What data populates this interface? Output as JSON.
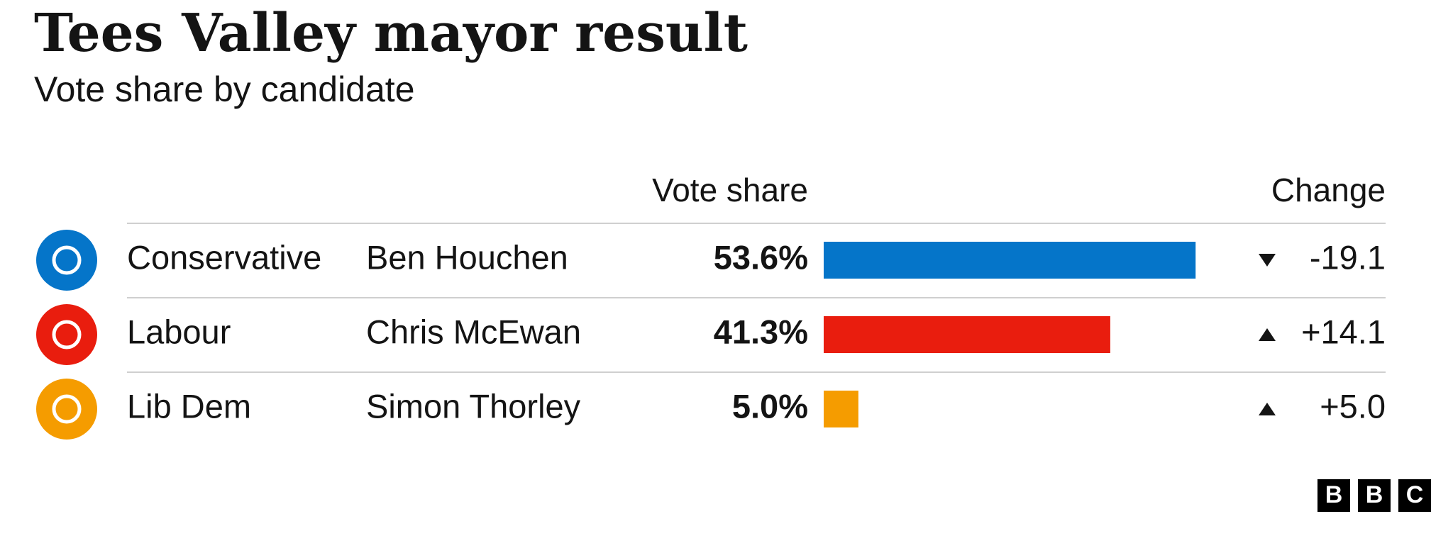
{
  "chart_data": {
    "type": "bar",
    "title": "Tees Valley mayor result",
    "subtitle": "Vote share by candidate",
    "value_header": "Vote share",
    "change_header": "Change",
    "categories": [
      "Conservative",
      "Labour",
      "Lib Dem"
    ],
    "candidates": [
      "Ben Houchen",
      "Chris McEwan",
      "Simon Thorley"
    ],
    "colors": [
      "#0575c9",
      "#e91d0e",
      "#f59c00"
    ],
    "values": [
      53.6,
      41.3,
      5.0
    ],
    "value_labels": [
      "53.6%",
      "41.3%",
      "5.0%"
    ],
    "change": [
      -19.1,
      14.1,
      5.0
    ],
    "change_labels": [
      "-19.1",
      "+14.1",
      "+5.0"
    ],
    "logo": [
      "B",
      "B",
      "C"
    ]
  }
}
